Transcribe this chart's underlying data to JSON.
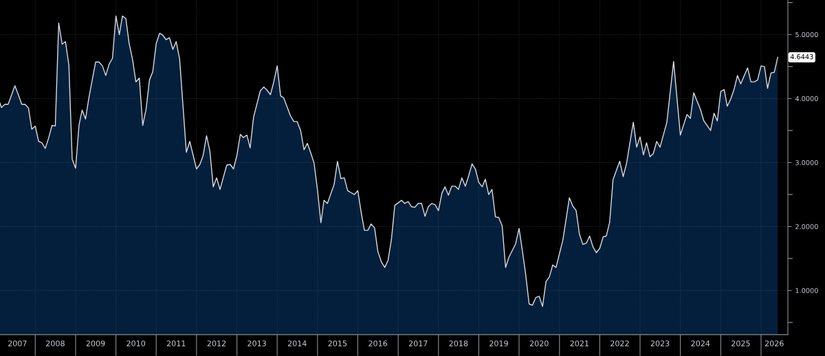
{
  "chart_data": {
    "type": "area",
    "x": [
      "2007-02-16",
      "2007-03",
      "2007-04",
      "2007-05",
      "2007-07",
      "2007-08",
      "2007-09",
      "2007-10",
      "2007-11",
      "2007-12",
      "2008-01",
      "2008-02",
      "2008-03",
      "2008-04",
      "2008-05",
      "2008-06",
      "2008-07",
      "2008-08",
      "2008-09",
      "2008-10",
      "2008-11",
      "2008-12",
      "2009-01",
      "2009-02",
      "2009-03",
      "2009-04",
      "2009-05",
      "2009-07",
      "2009-08",
      "2009-09",
      "2009-10",
      "2009-11",
      "2009-12",
      "2010-01",
      "2010-02",
      "2010-03",
      "2010-04",
      "2010-05",
      "2010-06",
      "2010-07",
      "2010-08",
      "2010-09",
      "2010-10",
      "2010-11",
      "2010-12",
      "2011-01",
      "2011-02",
      "2011-03",
      "2011-04",
      "2011-05",
      "2011-06",
      "2011-07",
      "2011-08",
      "2011-09",
      "2011-10",
      "2011-11",
      "2012-01",
      "2012-02",
      "2012-03",
      "2012-04",
      "2012-05",
      "2012-06",
      "2012-07",
      "2012-08",
      "2012-10",
      "2012-11",
      "2012-12",
      "2013-01",
      "2013-02",
      "2013-03",
      "2013-04",
      "2013-05",
      "2013-06",
      "2013-08",
      "2013-09",
      "2013-10",
      "2013-11",
      "2013-12",
      "2014-01",
      "2014-02",
      "2014-03",
      "2014-05",
      "2014-06",
      "2014-07",
      "2014-08",
      "2014-09",
      "2014-10",
      "2014-11",
      "2014-12",
      "2015-01",
      "2015-02",
      "2015-03",
      "2015-04",
      "2015-06",
      "2015-07",
      "2015-08",
      "2015-09",
      "2015-10",
      "2015-11",
      "2015-12",
      "2016-01",
      "2016-02",
      "2016-03",
      "2016-04",
      "2016-05",
      "2016-06",
      "2016-07",
      "2016-08",
      "2016-09",
      "2016-10",
      "2016-11",
      "2016-12",
      "2017-01",
      "2017-02",
      "2017-03",
      "2017-04",
      "2017-05",
      "2017-06",
      "2017-07",
      "2017-08",
      "2017-09",
      "2017-10",
      "2017-11",
      "2017-12",
      "2018-01",
      "2018-02",
      "2018-03",
      "2018-04",
      "2018-05",
      "2018-06",
      "2018-07",
      "2018-08",
      "2018-09",
      "2018-10",
      "2018-11",
      "2018-12",
      "2019-01",
      "2019-02",
      "2019-03",
      "2019-04",
      "2019-05",
      "2019-06",
      "2019-07",
      "2019-08",
      "2019-09",
      "2019-10",
      "2019-12",
      "2020-01",
      "2020-02",
      "2020-03",
      "2020-04",
      "2020-05",
      "2020-06",
      "2020-07",
      "2020-08",
      "2020-09",
      "2020-10",
      "2020-11",
      "2020-12",
      "2021-02",
      "2021-04",
      "2021-05",
      "2021-06",
      "2021-07",
      "2021-08",
      "2021-09",
      "2021-10",
      "2021-11",
      "2021-12",
      "2022-01",
      "2022-02",
      "2022-03",
      "2022-04",
      "2022-05",
      "2022-06",
      "2022-07",
      "2022-08",
      "2022-09",
      "2022-11",
      "2022-12",
      "2023-01",
      "2023-02",
      "2023-03",
      "2023-04",
      "2023-05",
      "2023-06",
      "2023-07",
      "2023-09",
      "2023-11",
      "2024-01",
      "2024-03",
      "2024-04",
      "2024-05",
      "2024-07",
      "2024-08",
      "2024-10",
      "2024-11",
      "2024-12",
      "2025-01",
      "2025-02",
      "2025-03",
      "2025-04",
      "2025-05",
      "2025-06",
      "2025-07",
      "2025-09",
      "2025-10",
      "2025-11",
      "2025-12",
      "2026-01",
      "2026-02",
      "2026-03",
      "2026-04",
      "2026-05",
      "2026-06"
    ],
    "series": [
      {
        "color": "#041f3b",
        "values": [
          3.93,
          3.86,
          3.91,
          3.91,
          4.2,
          4.06,
          3.91,
          3.91,
          3.85,
          3.52,
          3.57,
          3.33,
          3.31,
          3.22,
          3.38,
          3.58,
          3.57,
          5.18,
          4.85,
          4.89,
          4.52,
          3.05,
          2.91,
          3.59,
          3.82,
          3.68,
          4.01,
          4.57,
          4.57,
          4.51,
          4.36,
          4.54,
          4.63,
          5.29,
          5.0,
          5.29,
          5.25,
          4.86,
          4.61,
          4.26,
          4.32,
          3.58,
          3.83,
          4.29,
          4.42,
          4.86,
          5.02,
          4.99,
          4.92,
          4.95,
          4.77,
          4.89,
          4.62,
          3.88,
          3.16,
          3.33,
          2.9,
          2.97,
          3.11,
          3.42,
          3.18,
          2.62,
          2.76,
          2.58,
          2.96,
          2.97,
          2.9,
          3.11,
          3.44,
          3.39,
          3.43,
          3.23,
          3.71,
          4.12,
          4.18,
          4.13,
          4.06,
          4.26,
          4.51,
          4.04,
          4.01,
          3.73,
          3.64,
          3.64,
          3.5,
          3.2,
          3.3,
          3.15,
          2.99,
          2.57,
          2.06,
          2.41,
          2.36,
          2.66,
          3.02,
          2.75,
          2.76,
          2.56,
          2.53,
          2.5,
          2.56,
          2.22,
          1.94,
          1.94,
          2.04,
          1.98,
          1.61,
          1.45,
          1.36,
          1.47,
          1.8,
          2.33,
          2.37,
          2.41,
          2.36,
          2.39,
          2.31,
          2.3,
          2.36,
          2.36,
          2.16,
          2.31,
          2.36,
          2.34,
          2.25,
          2.52,
          2.62,
          2.49,
          2.63,
          2.63,
          2.58,
          2.76,
          2.63,
          2.79,
          2.98,
          2.9,
          2.69,
          2.62,
          2.74,
          2.5,
          2.58,
          2.15,
          2.14,
          2.01,
          1.36,
          1.52,
          1.73,
          1.97,
          1.61,
          1.25,
          0.79,
          0.77,
          0.89,
          0.91,
          0.75,
          1.14,
          1.21,
          1.4,
          1.36,
          1.79,
          2.45,
          2.32,
          2.25,
          1.88,
          1.72,
          1.74,
          1.85,
          1.68,
          1.59,
          1.66,
          1.84,
          1.85,
          2.07,
          2.73,
          2.88,
          3.02,
          2.78,
          2.99,
          3.63,
          3.24,
          3.4,
          3.12,
          3.31,
          3.09,
          3.14,
          3.33,
          3.24,
          3.63,
          4.58,
          3.43,
          3.75,
          3.69,
          4.09,
          3.83,
          3.65,
          3.5,
          3.77,
          3.65,
          4.11,
          4.14,
          3.88,
          3.99,
          4.14,
          4.36,
          4.23,
          4.48,
          4.26,
          4.26,
          4.29,
          4.51,
          4.5,
          4.16,
          4.4,
          4.41,
          4.6443
        ]
      }
    ],
    "xlim": [
      "2007-02-16",
      "2026-09-01"
    ],
    "ylim": [
      0.31,
      5.54
    ],
    "xticks": [
      {
        "value": "2007-07-24",
        "label": "2007"
      },
      {
        "value": "2008-01-01",
        "label": null
      },
      {
        "value": "2008-07-01",
        "label": "2008"
      },
      {
        "value": "2009-01-01",
        "label": null
      },
      {
        "value": "2009-07-01",
        "label": "2009"
      },
      {
        "value": "2010-01-01",
        "label": null
      },
      {
        "value": "2010-07-01",
        "label": "2010"
      },
      {
        "value": "2011-01-01",
        "label": null
      },
      {
        "value": "2011-07-01",
        "label": "2011"
      },
      {
        "value": "2012-01-01",
        "label": null
      },
      {
        "value": "2012-07-01",
        "label": "2012"
      },
      {
        "value": "2013-01-01",
        "label": null
      },
      {
        "value": "2013-07-01",
        "label": "2013"
      },
      {
        "value": "2014-01-01",
        "label": null
      },
      {
        "value": "2014-07-01",
        "label": "2014"
      },
      {
        "value": "2015-01-01",
        "label": null
      },
      {
        "value": "2015-07-01",
        "label": "2015"
      },
      {
        "value": "2016-01-01",
        "label": null
      },
      {
        "value": "2016-07-01",
        "label": "2016"
      },
      {
        "value": "2017-01-01",
        "label": null
      },
      {
        "value": "2017-07-01",
        "label": "2017"
      },
      {
        "value": "2018-01-01",
        "label": null
      },
      {
        "value": "2018-07-01",
        "label": "2018"
      },
      {
        "value": "2019-01-01",
        "label": null
      },
      {
        "value": "2019-07-01",
        "label": "2019"
      },
      {
        "value": "2020-01-01",
        "label": null
      },
      {
        "value": "2020-07-01",
        "label": "2020"
      },
      {
        "value": "2021-01-01",
        "label": null
      },
      {
        "value": "2021-07-01",
        "label": "2021"
      },
      {
        "value": "2022-01-01",
        "label": null
      },
      {
        "value": "2022-07-01",
        "label": "2022"
      },
      {
        "value": "2023-01-01",
        "label": null
      },
      {
        "value": "2023-07-01",
        "label": "2023"
      },
      {
        "value": "2024-01-01",
        "label": null
      },
      {
        "value": "2024-07-01",
        "label": "2024"
      },
      {
        "value": "2025-01-01",
        "label": null
      },
      {
        "value": "2025-07-01",
        "label": "2025"
      },
      {
        "value": "2026-01-01",
        "label": null
      },
      {
        "value": "2026-05-01",
        "label": "2026"
      }
    ],
    "yticks": [
      {
        "value": 0.5,
        "label": null
      },
      {
        "value": 1,
        "label": "1.0000"
      },
      {
        "value": 1.5,
        "label": null
      },
      {
        "value": 2,
        "label": "2.0000"
      },
      {
        "value": 2.5,
        "label": null
      },
      {
        "value": 3,
        "label": "3.0000"
      },
      {
        "value": 3.5,
        "label": null
      },
      {
        "value": 4,
        "label": "4.0000"
      },
      {
        "value": 4.5,
        "label": null
      },
      {
        "value": 5,
        "label": "5.0000"
      },
      {
        "value": 5.5,
        "label": null
      }
    ],
    "grid": true,
    "annotations": [
      {
        "text": "4.6443",
        "x": "2026-06",
        "y": 4.6443
      }
    ]
  }
}
